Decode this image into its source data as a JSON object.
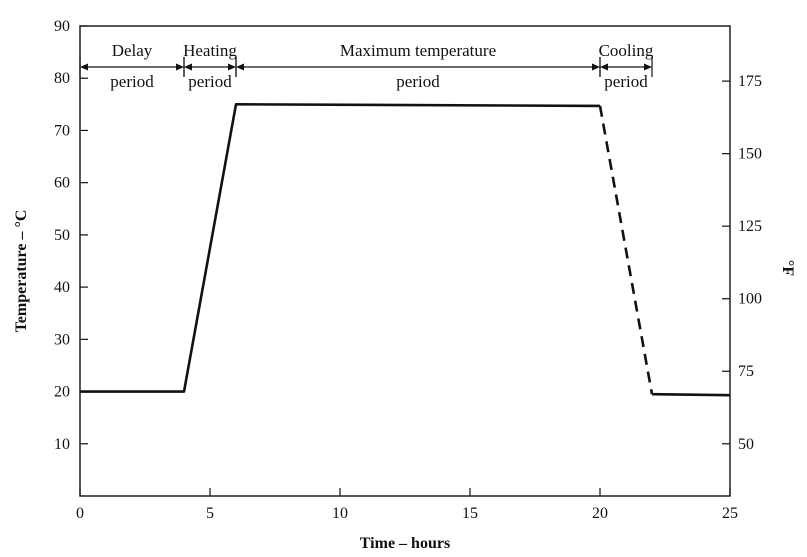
{
  "chart_data": {
    "type": "line",
    "xlabel": "Time – hours",
    "ylabel": "Temperature – °C",
    "y2label": "°F",
    "xlim": [
      0,
      25
    ],
    "ylim": [
      0,
      90
    ],
    "y2lim": [
      32,
      194
    ],
    "grid": false,
    "xticks": [
      0,
      5,
      10,
      15,
      20,
      25
    ],
    "yticks": [
      10,
      20,
      30,
      40,
      50,
      60,
      70,
      80,
      90
    ],
    "y2ticks": [
      50,
      75,
      100,
      125,
      150,
      175
    ],
    "segments": [
      {
        "style": "solid",
        "points": [
          [
            0,
            20
          ],
          [
            4,
            20
          ],
          [
            6,
            75
          ],
          [
            20,
            74.7
          ]
        ]
      },
      {
        "style": "dashed",
        "points": [
          [
            20,
            74.7
          ],
          [
            22,
            19.5
          ]
        ]
      },
      {
        "style": "solid",
        "points": [
          [
            22,
            19.5
          ],
          [
            25,
            19.3
          ]
        ]
      }
    ],
    "periods": [
      {
        "lines": [
          "Delay",
          "period"
        ],
        "start": 0,
        "end": 4
      },
      {
        "lines": [
          "Heating",
          "period"
        ],
        "start": 4,
        "end": 6
      },
      {
        "lines": [
          "Maximum temperature",
          "period"
        ],
        "start": 6,
        "end": 20
      },
      {
        "lines": [
          "Cooling",
          "period"
        ],
        "start": 20,
        "end": 22
      }
    ]
  }
}
